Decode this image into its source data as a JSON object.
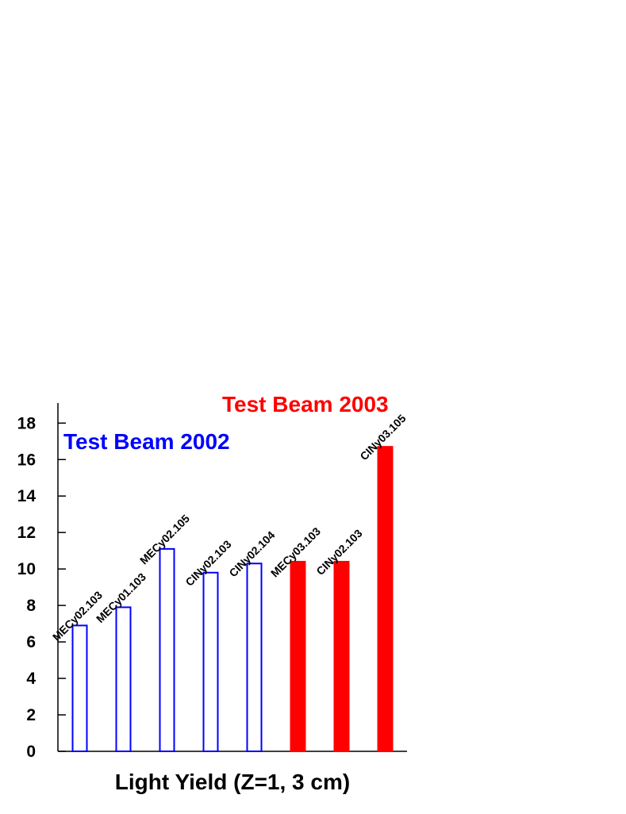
{
  "chart_data": {
    "type": "bar",
    "x_label": "Light Yield (Z=1, 3 cm)",
    "categories": [
      "MECy02.103",
      "MECy01.103",
      "MECy02.105",
      "CINy02.103",
      "CINy02.104",
      "MECy03.103",
      "CINy02.103",
      "CINy03.105"
    ],
    "series": [
      {
        "name": "Test Beam 2002",
        "color": "#0000ff",
        "filled": false,
        "values": [
          6.9,
          7.9,
          11.1,
          9.8,
          10.3,
          null,
          null,
          null
        ]
      },
      {
        "name": "Test Beam 2003",
        "color": "#ff0000",
        "filled": true,
        "values": [
          null,
          null,
          null,
          null,
          null,
          10.4,
          10.4,
          16.7
        ]
      }
    ],
    "ylim": [
      0,
      19.1
    ],
    "yticks": [
      0,
      2,
      4,
      6,
      8,
      10,
      12,
      14,
      16,
      18
    ],
    "grid": false
  }
}
